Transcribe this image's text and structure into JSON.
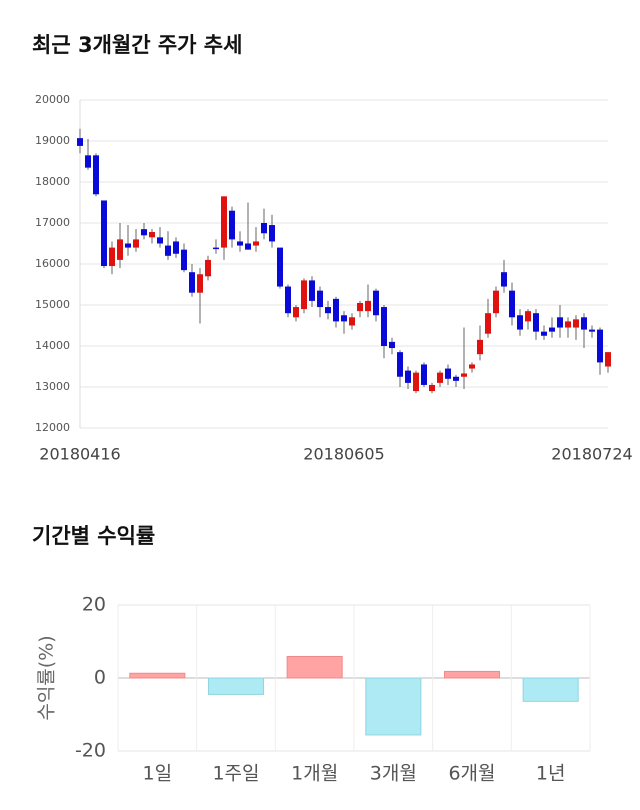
{
  "chart_data": [
    {
      "type": "candlestick",
      "title": "최근 3개월간 주가 추세",
      "categories": [
        "20180416",
        null,
        null,
        null,
        null,
        null,
        null,
        null,
        null,
        null,
        null,
        null,
        null,
        null,
        null,
        null,
        null,
        null,
        null,
        null,
        null,
        null,
        null,
        null,
        null,
        null,
        null,
        null,
        null,
        null,
        null,
        null,
        null,
        "20180605",
        null,
        null,
        null,
        null,
        null,
        null,
        null,
        null,
        null,
        null,
        null,
        null,
        null,
        null,
        null,
        null,
        null,
        null,
        null,
        null,
        null,
        null,
        null,
        null,
        null,
        null,
        null,
        null,
        null,
        null,
        "20180724",
        null,
        null
      ],
      "open": [
        19070,
        18650,
        18650,
        17550,
        15950,
        16100,
        16500,
        16400,
        16850,
        16650,
        16650,
        16450,
        16550,
        16350,
        15800,
        15300,
        15700,
        16400,
        16400,
        17300,
        16550,
        16500,
        16450,
        17000,
        16950,
        16400,
        15450,
        14700,
        14900,
        15600,
        15350,
        14950,
        15150,
        14750,
        14500,
        14850,
        14850,
        15350,
        14950,
        14100,
        13850,
        13400,
        12900,
        13550,
        12900,
        13100,
        13450,
        13250,
        13250,
        13450,
        13800,
        14300,
        14800,
        15800,
        15350,
        14750,
        14600,
        14800,
        14350,
        14450,
        14700,
        14450,
        14450,
        14700,
        14400,
        14400,
        13500
      ],
      "high": [
        19300,
        19050,
        18700,
        17550,
        16550,
        17000,
        16950,
        16850,
        17000,
        16850,
        16900,
        16800,
        16650,
        16500,
        16000,
        15900,
        16200,
        16600,
        17650,
        17400,
        16800,
        17500,
        16900,
        17350,
        17200,
        16400,
        15500,
        15000,
        15650,
        15700,
        15450,
        15100,
        15200,
        14850,
        14800,
        15100,
        15500,
        15400,
        15000,
        14200,
        13900,
        13500,
        13400,
        13600,
        13100,
        13400,
        13550,
        13300,
        14450,
        13600,
        14500,
        15150,
        15450,
        16100,
        15550,
        14900,
        14900,
        14900,
        14500,
        14700,
        15000,
        14700,
        14750,
        14800,
        14500,
        14450,
        13850
      ],
      "low": [
        18700,
        18300,
        17650,
        15900,
        15750,
        15900,
        16200,
        16300,
        16600,
        16500,
        16400,
        16100,
        16150,
        15800,
        15200,
        14550,
        15600,
        16250,
        16100,
        16400,
        16300,
        16350,
        16300,
        16600,
        16400,
        15400,
        14700,
        14600,
        14800,
        14950,
        14700,
        14650,
        14450,
        14300,
        14400,
        14700,
        14700,
        14600,
        13700,
        13800,
        13000,
        12950,
        12850,
        13000,
        12850,
        13000,
        13050,
        13000,
        12950,
        13350,
        13650,
        14200,
        14700,
        15300,
        14500,
        14250,
        14400,
        14150,
        14150,
        14200,
        14200,
        14200,
        14150,
        13950,
        14200,
        13300,
        13350
      ],
      "close": [
        18880,
        18350,
        17700,
        15950,
        16400,
        16600,
        16400,
        16600,
        16700,
        16780,
        16500,
        16200,
        16250,
        15850,
        15300,
        15750,
        16100,
        16380,
        17650,
        16600,
        16450,
        16350,
        16550,
        16750,
        16550,
        15450,
        14800,
        14950,
        15600,
        15100,
        14950,
        14800,
        14600,
        14600,
        14700,
        15050,
        15100,
        14750,
        14000,
        13950,
        13250,
        13100,
        13350,
        13050,
        13050,
        13350,
        13200,
        13150,
        13330,
        13550,
        14150,
        14800,
        15350,
        15450,
        14700,
        14400,
        14850,
        14350,
        14250,
        14350,
        14450,
        14600,
        14650,
        14400,
        14350,
        13600,
        13850
      ],
      "up_color": "#e0120f",
      "down_color": "#0a0ad8",
      "ylim": [
        12000,
        20000
      ],
      "yticks": [
        12000,
        13000,
        14000,
        15000,
        16000,
        17000,
        18000,
        19000,
        20000
      ],
      "grid": true
    },
    {
      "type": "bar",
      "title": "기간별 수익률",
      "y_label": "수익률(%)",
      "categories": [
        "1일",
        "1주일",
        "1개월",
        "3개월",
        "6개월",
        "1년"
      ],
      "values": [
        1.3,
        -4.5,
        5.9,
        -15.6,
        1.8,
        -6.4
      ],
      "positive_color": "#ffa3a3",
      "negative_color": "#aeeaf3",
      "ylim": [
        -20,
        20
      ],
      "yticks": [
        -20,
        0,
        20
      ],
      "grid": true
    }
  ]
}
